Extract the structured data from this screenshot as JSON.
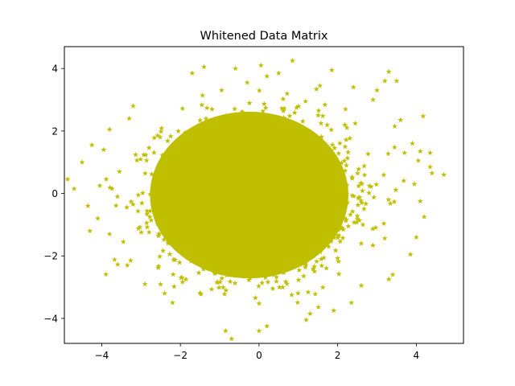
{
  "chart_data": {
    "type": "scatter",
    "title": "Whitened Data Matrix",
    "xlabel": "",
    "ylabel": "",
    "xlim": [
      -4.95,
      5.2
    ],
    "ylim": [
      -4.8,
      4.7
    ],
    "xticks": [
      -4,
      -2,
      0,
      2,
      4
    ],
    "yticks": [
      -4,
      -2,
      0,
      2,
      4
    ],
    "xtick_labels": [
      "−4",
      "−2",
      "0",
      "2",
      "4"
    ],
    "ytick_labels": [
      "−4",
      "−2",
      "0",
      "2",
      "4"
    ],
    "grid": false,
    "marker": "star",
    "color": "#bfbf00",
    "series": [
      {
        "core_cluster": {
          "x_range": [
            -2.6,
            2.6
          ],
          "y_range": [
            -2.6,
            2.9
          ],
          "points_estimated": 8000
        },
        "outliers": [
          [
            -4.7,
            0.15
          ],
          [
            -4.5,
            1.0
          ],
          [
            -4.35,
            -0.4
          ],
          [
            -4.3,
            -1.2
          ],
          [
            -4.25,
            1.55
          ],
          [
            -4.1,
            -0.8
          ],
          [
            -4.05,
            0.25
          ],
          [
            -3.95,
            1.4
          ],
          [
            -3.8,
            -1.3
          ],
          [
            -3.8,
            2.05
          ],
          [
            -3.6,
            -0.1
          ],
          [
            -3.55,
            0.7
          ],
          [
            -3.45,
            -1.55
          ],
          [
            -3.35,
            -2.3
          ],
          [
            -3.3,
            2.4
          ],
          [
            -3.2,
            2.8
          ],
          [
            -2.9,
            -2.9
          ],
          [
            -2.2,
            -3.5
          ],
          [
            -1.7,
            3.85
          ],
          [
            -1.4,
            4.05
          ],
          [
            -0.95,
            3.3
          ],
          [
            -0.85,
            -4.4
          ],
          [
            -0.6,
            4.0
          ],
          [
            -0.3,
            3.55
          ],
          [
            0.0,
            -4.4
          ],
          [
            0.05,
            4.1
          ],
          [
            0.2,
            3.75
          ],
          [
            0.2,
            -4.25
          ],
          [
            0.5,
            3.85
          ],
          [
            0.85,
            4.25
          ],
          [
            1.2,
            -4.05
          ],
          [
            1.3,
            -3.85
          ],
          [
            1.55,
            3.45
          ],
          [
            1.9,
            -3.75
          ],
          [
            2.2,
            2.7
          ],
          [
            2.6,
            -2.95
          ],
          [
            2.9,
            3.0
          ],
          [
            3.0,
            3.3
          ],
          [
            3.2,
            3.6
          ],
          [
            3.3,
            3.9
          ],
          [
            3.5,
            3.6
          ],
          [
            3.3,
            -2.75
          ],
          [
            3.4,
            -2.6
          ],
          [
            3.45,
            2.15
          ],
          [
            3.7,
            1.3
          ],
          [
            3.85,
            -1.95
          ],
          [
            3.95,
            0.3
          ],
          [
            4.1,
            -0.25
          ],
          [
            4.05,
            1.05
          ],
          [
            4.2,
            -0.75
          ],
          [
            4.1,
            1.35
          ],
          [
            4.35,
            0.85
          ],
          [
            4.35,
            1.3
          ],
          [
            4.4,
            0.65
          ],
          [
            4.7,
            0.6
          ],
          [
            4.0,
            -1.4
          ],
          [
            3.9,
            1.6
          ],
          [
            3.6,
            2.35
          ],
          [
            -2.4,
            -3.2
          ],
          [
            2.4,
            3.4
          ]
        ]
      }
    ]
  }
}
